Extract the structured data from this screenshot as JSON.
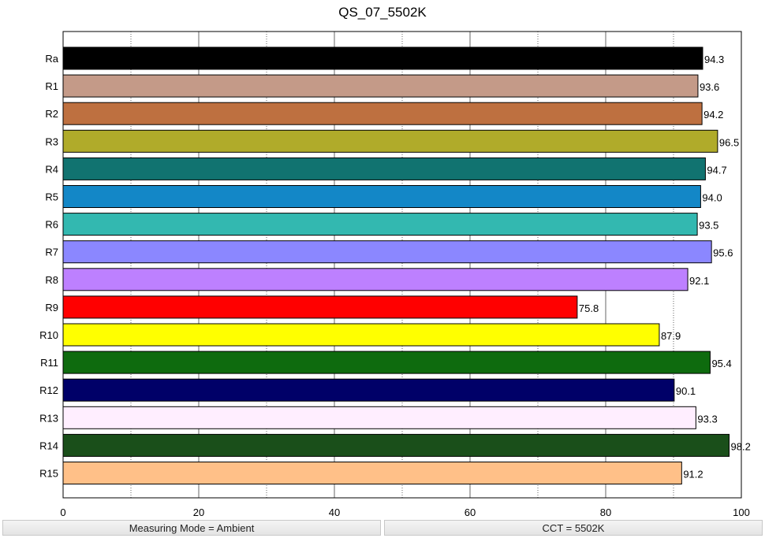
{
  "chart_data": {
    "type": "bar",
    "orientation": "horizontal",
    "title": "QS_07_5502K",
    "categories": [
      "Ra",
      "R1",
      "R2",
      "R3",
      "R4",
      "R5",
      "R6",
      "R7",
      "R8",
      "R9",
      "R10",
      "R11",
      "R12",
      "R13",
      "R14",
      "R15"
    ],
    "values": [
      94.3,
      93.6,
      94.2,
      96.5,
      94.7,
      94.0,
      93.5,
      95.6,
      92.1,
      75.8,
      87.9,
      95.4,
      90.1,
      93.3,
      98.2,
      91.2
    ],
    "value_labels": [
      "94.3",
      "93.6",
      "94.2",
      "96.5",
      "94.7",
      "94.0",
      "93.5",
      "95.6",
      "92.1",
      "75.8",
      "87.9",
      "95.4",
      "90.1",
      "93.3",
      "98.2",
      "91.2"
    ],
    "colors": [
      "#000000",
      "#c49a88",
      "#be7040",
      "#b0ab2a",
      "#117370",
      "#1387c7",
      "#33b8b0",
      "#8b87ff",
      "#bd80ff",
      "#ff0000",
      "#ffff00",
      "#0e6b0e",
      "#000068",
      "#ffeeff",
      "#1a4f1a",
      "#ffc088"
    ],
    "xlim": [
      0,
      100
    ],
    "x_ticks": [
      0,
      20,
      40,
      60,
      80,
      100
    ],
    "x_tick_labels": [
      "0",
      "20",
      "40",
      "60",
      "80",
      "100"
    ],
    "minor_gridlines": [
      10,
      30,
      50,
      70,
      90
    ],
    "major_gridlines": [
      20,
      40,
      60,
      80
    ],
    "grid": true,
    "xlabel": "",
    "ylabel": ""
  },
  "status_bar": {
    "measuring_mode": "Measuring Mode = Ambient",
    "cct": "CCT = 5502K"
  }
}
